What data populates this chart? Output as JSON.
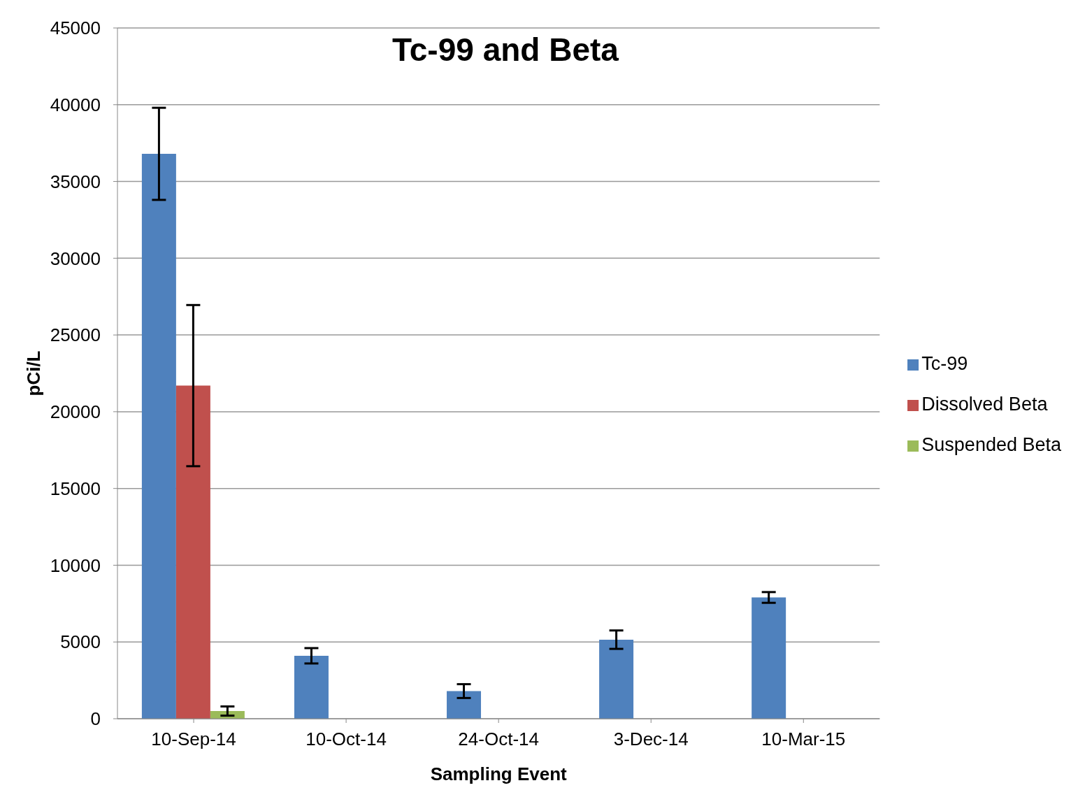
{
  "chart_data": {
    "type": "bar",
    "title": "Tc-99 and Beta",
    "xlabel": "Sampling Event",
    "ylabel": "pCi/L",
    "categories": [
      "10-Sep-14",
      "10-Oct-14",
      "24-Oct-14",
      "3-Dec-14",
      "10-Mar-15"
    ],
    "series": [
      {
        "name": "Tc-99",
        "color": "#4f81bd",
        "values": [
          36800,
          4100,
          1800,
          5150,
          7900
        ],
        "errors": [
          3000,
          500,
          450,
          600,
          350
        ]
      },
      {
        "name": "Dissolved Beta",
        "color": "#c0504d",
        "values": [
          21700,
          null,
          null,
          null,
          null
        ],
        "errors": [
          5250,
          null,
          null,
          null,
          null
        ]
      },
      {
        "name": "Suspended Beta",
        "color": "#9bbb59",
        "values": [
          500,
          null,
          null,
          null,
          null
        ],
        "errors": [
          300,
          null,
          null,
          null,
          null
        ]
      }
    ],
    "ylim": [
      0,
      45000
    ],
    "yticks": [
      0,
      5000,
      10000,
      15000,
      20000,
      25000,
      30000,
      35000,
      40000,
      45000
    ],
    "grid": "y",
    "legend": "right"
  }
}
